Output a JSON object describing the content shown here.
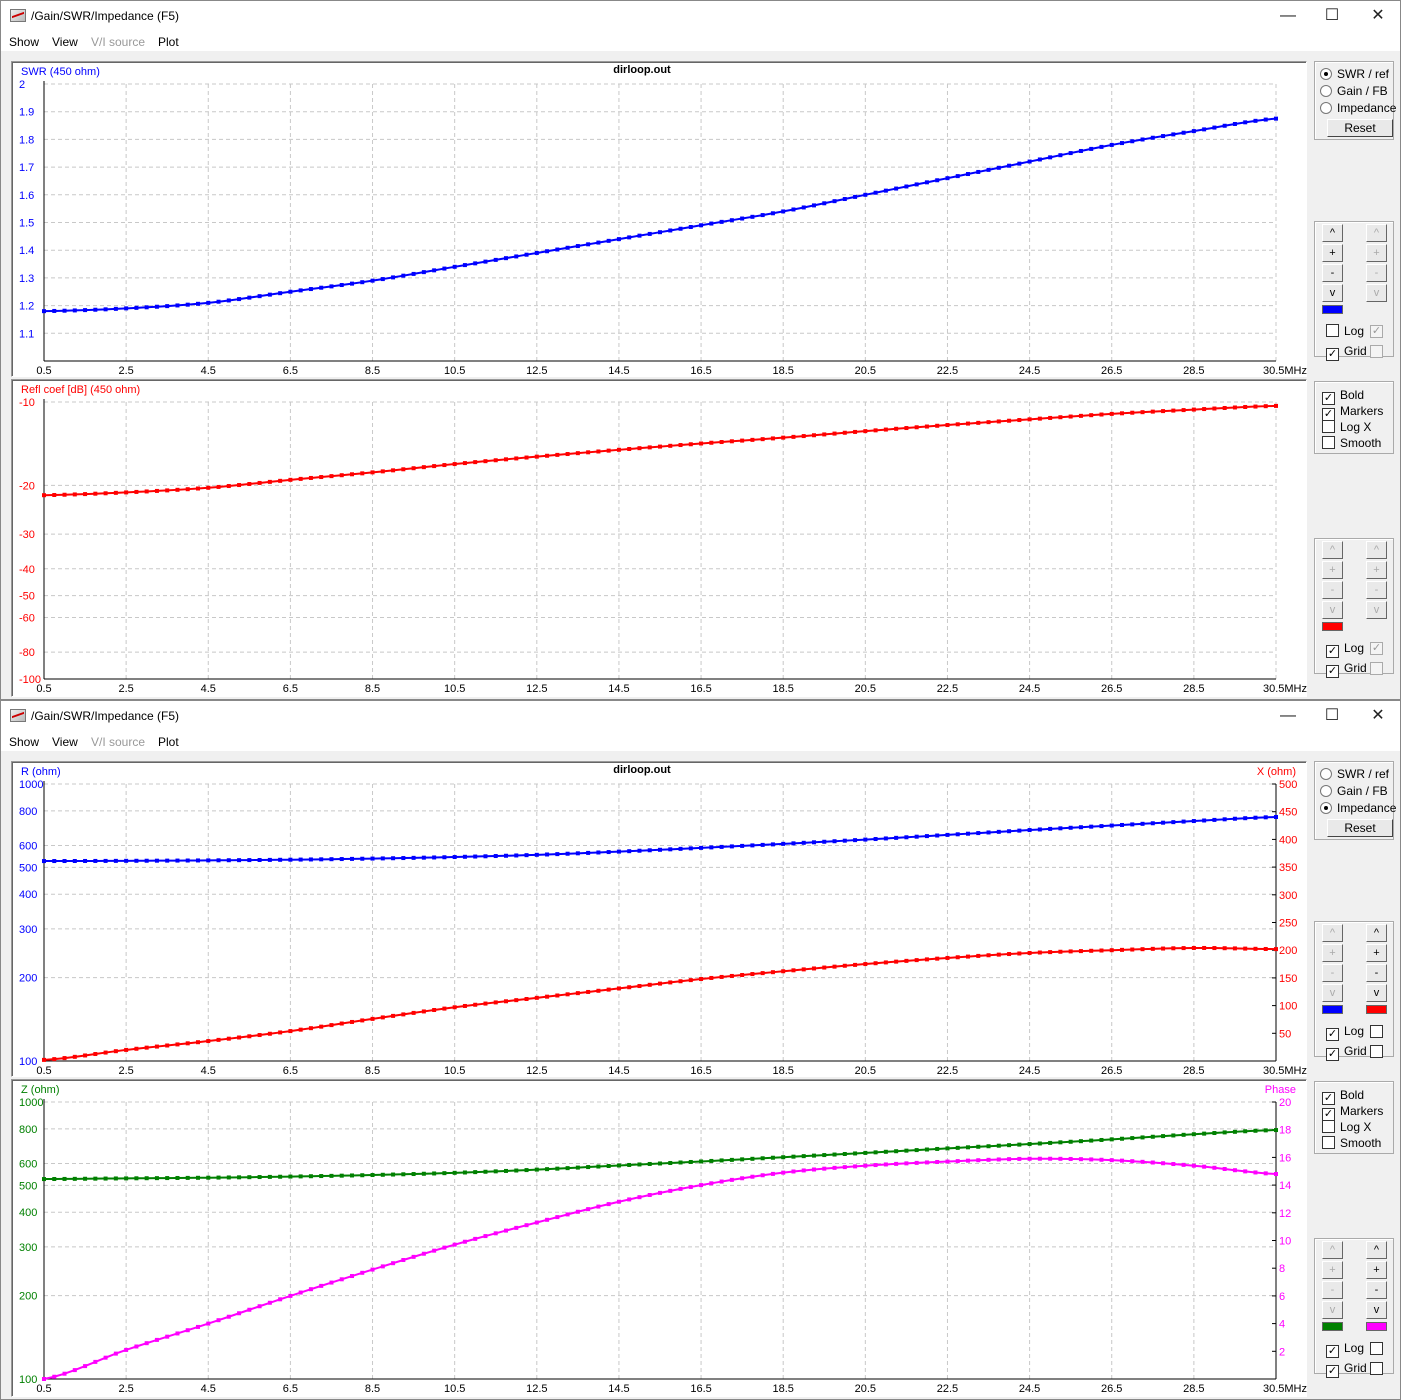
{
  "windows": [
    {
      "title": "/Gain/SWR/Impedance (F5)",
      "menu": [
        "Show",
        "View",
        "V/I source",
        "Plot"
      ],
      "menu_disabled": [
        false,
        false,
        true,
        false
      ],
      "controls": {
        "minimize": "—",
        "maximize": "☐",
        "close": "✕"
      },
      "panel": {
        "radios": [
          {
            "label": "SWR / ref",
            "checked": true
          },
          {
            "label": "Gain / FB",
            "checked": false
          },
          {
            "label": "Impedance",
            "checked": false
          }
        ],
        "reset": "Reset",
        "top_group": {
          "left_enabled": true,
          "right_enabled": false,
          "buttons": [
            "^",
            "+",
            "-",
            "v"
          ],
          "swatches": [
            "#0000ff"
          ],
          "log": [
            false,
            true
          ],
          "grid": [
            true,
            false
          ],
          "log_label": "Log",
          "grid_label": "Grid",
          "right_cb_enabled": false
        },
        "options": [
          {
            "label": "Bold",
            "checked": true
          },
          {
            "label": "Markers",
            "checked": true
          },
          {
            "label": "Log X",
            "checked": false
          },
          {
            "label": "Smooth",
            "checked": false
          }
        ],
        "bottom_group": {
          "left_enabled": false,
          "right_enabled": false,
          "buttons": [
            "^",
            "+",
            "-",
            "v"
          ],
          "swatches": [
            "#ff0000"
          ],
          "log": [
            true,
            true
          ],
          "grid": [
            true,
            false
          ],
          "log_label": "Log",
          "grid_label": "Grid",
          "right_cb_enabled": false
        }
      },
      "charts": [
        {
          "type": "line",
          "title": "dirloop.out",
          "x": [
            0.5,
            2.5,
            4.5,
            6.5,
            8.5,
            10.5,
            12.5,
            14.5,
            16.5,
            18.5,
            20.5,
            22.5,
            24.5,
            26.5,
            28.5,
            30.5
          ],
          "x_tick_labels": [
            "0.5",
            "2.5",
            "4.5",
            "6.5",
            "8.5",
            "10.5",
            "12.5",
            "14.5",
            "16.5",
            "18.5",
            "20.5",
            "22.5",
            "24.5",
            "26.5",
            "28.5",
            "30.5MHz"
          ],
          "xlim": [
            0.5,
            30.5
          ],
          "left_axis": {
            "label": "SWR (450 ohm)",
            "color": "#0000ff",
            "scale": "linear",
            "range": [
              1,
              2
            ],
            "ticks": [
              2,
              1.9,
              1.8,
              1.7,
              1.6,
              1.5,
              1.4,
              1.3,
              1.2,
              1.1
            ],
            "tick_labels": [
              "2",
              "1.9",
              "1.8",
              "1.7",
              "1.6",
              "1.5",
              "1.4",
              "1.3",
              "1.2",
              "1.1"
            ]
          },
          "series": [
            {
              "name": "SWR",
              "axis": "left",
              "color": "#0000ff",
              "values": [
                1.18,
                1.19,
                1.21,
                1.25,
                1.29,
                1.34,
                1.39,
                1.44,
                1.49,
                1.54,
                1.6,
                1.66,
                1.72,
                1.78,
                1.83,
                1.875
              ]
            }
          ]
        },
        {
          "type": "line",
          "title": "",
          "x": [
            0.5,
            2.5,
            4.5,
            6.5,
            8.5,
            10.5,
            12.5,
            14.5,
            16.5,
            18.5,
            20.5,
            22.5,
            24.5,
            26.5,
            28.5,
            30.5
          ],
          "x_tick_labels": [
            "0.5",
            "2.5",
            "4.5",
            "6.5",
            "8.5",
            "10.5",
            "12.5",
            "14.5",
            "16.5",
            "18.5",
            "20.5",
            "22.5",
            "24.5",
            "26.5",
            "28.5",
            "30.5MHz"
          ],
          "xlim": [
            0.5,
            30.5
          ],
          "left_axis": {
            "label": "Refl coef [dB] (450 ohm)",
            "color": "#ff0000",
            "scale": "logabs",
            "range": [
              -10,
              -100
            ],
            "ticks": [
              -10,
              -20,
              -30,
              -40,
              -50,
              -60,
              -80,
              -100
            ],
            "tick_labels": [
              "-10",
              "-20",
              "-30",
              "-40",
              "-50",
              "-60",
              "-80",
              "-100"
            ]
          },
          "series": [
            {
              "name": "Refl coef",
              "axis": "left",
              "color": "#ff0000",
              "values": [
                -21.7,
                -21.2,
                -20.4,
                -19.1,
                -17.95,
                -16.75,
                -15.75,
                -14.88,
                -14.12,
                -13.45,
                -12.74,
                -12.11,
                -11.55,
                -11.04,
                -10.65,
                -10.33
              ]
            }
          ]
        }
      ]
    },
    {
      "title": "/Gain/SWR/Impedance (F5)",
      "menu": [
        "Show",
        "View",
        "V/I source",
        "Plot"
      ],
      "menu_disabled": [
        false,
        false,
        true,
        false
      ],
      "controls": {
        "minimize": "—",
        "maximize": "☐",
        "close": "✕"
      },
      "panel": {
        "radios": [
          {
            "label": "SWR / ref",
            "checked": false
          },
          {
            "label": "Gain / FB",
            "checked": false
          },
          {
            "label": "Impedance",
            "checked": true
          }
        ],
        "reset": "Reset",
        "top_group": {
          "left_enabled": false,
          "right_enabled": true,
          "buttons": [
            "^",
            "+",
            "-",
            "v"
          ],
          "swatches": [
            "#0000ff",
            "#ff0000"
          ],
          "log": [
            true,
            false
          ],
          "grid": [
            true,
            false
          ],
          "log_label": "Log",
          "grid_label": "Grid",
          "right_cb_enabled": true
        },
        "options": [
          {
            "label": "Bold",
            "checked": true
          },
          {
            "label": "Markers",
            "checked": true
          },
          {
            "label": "Log X",
            "checked": false
          },
          {
            "label": "Smooth",
            "checked": false
          }
        ],
        "bottom_group": {
          "left_enabled": false,
          "right_enabled": true,
          "buttons": [
            "^",
            "+",
            "-",
            "v"
          ],
          "swatches": [
            "#008000",
            "#ff00ff"
          ],
          "log": [
            true,
            false
          ],
          "grid": [
            true,
            false
          ],
          "log_label": "Log",
          "grid_label": "Grid",
          "right_cb_enabled": true
        }
      },
      "charts": [
        {
          "type": "line",
          "title": "dirloop.out",
          "x": [
            0.5,
            2.5,
            4.5,
            6.5,
            8.5,
            10.5,
            12.5,
            14.5,
            16.5,
            18.5,
            20.5,
            22.5,
            24.5,
            26.5,
            28.5,
            30.5
          ],
          "x_tick_labels": [
            "0.5",
            "2.5",
            "4.5",
            "6.5",
            "8.5",
            "10.5",
            "12.5",
            "14.5",
            "16.5",
            "18.5",
            "20.5",
            "22.5",
            "24.5",
            "26.5",
            "28.5",
            "30.5MHz"
          ],
          "xlim": [
            0.5,
            30.5
          ],
          "left_axis": {
            "label": "R (ohm)",
            "color": "#0000ff",
            "scale": "log",
            "range": [
              100,
              1000
            ],
            "ticks": [
              1000,
              800,
              600,
              500,
              400,
              300,
              200,
              100
            ],
            "tick_labels": [
              "1000",
              "800",
              "600",
              "500",
              "400",
              "300",
              "200",
              "100"
            ]
          },
          "right_axis": {
            "label": "X (ohm)",
            "color": "#ff0000",
            "scale": "linear",
            "range": [
              0,
              500
            ],
            "ticks": [
              500,
              450,
              400,
              350,
              300,
              250,
              200,
              150,
              100,
              50
            ],
            "tick_labels": [
              "500",
              "450",
              "400",
              "350",
              "300",
              "250",
              "200",
              "150",
              "100",
              "50"
            ]
          },
          "series": [
            {
              "name": "R",
              "axis": "left",
              "color": "#0000ff",
              "values": [
                527,
                528,
                530,
                533,
                538,
                545,
                555,
                570,
                588,
                608,
                630,
                655,
                682,
                708,
                735,
                760
              ]
            },
            {
              "name": "X",
              "axis": "right",
              "color": "#ff0000",
              "values": [
                2,
                20,
                36,
                54,
                76,
                97,
                114,
                131,
                148,
                162,
                175,
                186,
                195,
                200,
                204,
                202
              ]
            }
          ]
        },
        {
          "type": "line",
          "title": "",
          "x": [
            0.5,
            2.5,
            4.5,
            6.5,
            8.5,
            10.5,
            12.5,
            14.5,
            16.5,
            18.5,
            20.5,
            22.5,
            24.5,
            26.5,
            28.5,
            30.5
          ],
          "x_tick_labels": [
            "0.5",
            "2.5",
            "4.5",
            "6.5",
            "8.5",
            "10.5",
            "12.5",
            "14.5",
            "16.5",
            "18.5",
            "20.5",
            "22.5",
            "24.5",
            "26.5",
            "28.5",
            "30.5MHz"
          ],
          "xlim": [
            0.5,
            30.5
          ],
          "left_axis": {
            "label": "Z (ohm)",
            "color": "#008000",
            "scale": "log",
            "range": [
              100,
              1000
            ],
            "ticks": [
              1000,
              800,
              600,
              500,
              400,
              300,
              200,
              100
            ],
            "tick_labels": [
              "1000",
              "800",
              "600",
              "500",
              "400",
              "300",
              "200",
              "100"
            ]
          },
          "right_axis": {
            "label": "Phase",
            "color": "#ff00ff",
            "scale": "linear",
            "range": [
              0,
              20
            ],
            "ticks": [
              20,
              18,
              16,
              14,
              12,
              10,
              8,
              6,
              4,
              2
            ],
            "tick_labels": [
              "20",
              "18",
              "16",
              "14",
              "12",
              "10",
              "8",
              "6",
              "4",
              "2"
            ]
          },
          "series": [
            {
              "name": "Z",
              "axis": "left",
              "color": "#008000",
              "values": [
                527,
                530,
                533,
                538,
                545,
                555,
                570,
                590,
                610,
                632,
                655,
                680,
                705,
                733,
                765,
                792
              ]
            },
            {
              "name": "Phase",
              "axis": "right",
              "color": "#ff00ff",
              "values": [
                0,
                2.1,
                4.0,
                6.0,
                7.9,
                9.7,
                11.3,
                12.8,
                14.0,
                14.9,
                15.4,
                15.7,
                15.9,
                15.8,
                15.4,
                14.8
              ]
            }
          ]
        }
      ]
    }
  ]
}
